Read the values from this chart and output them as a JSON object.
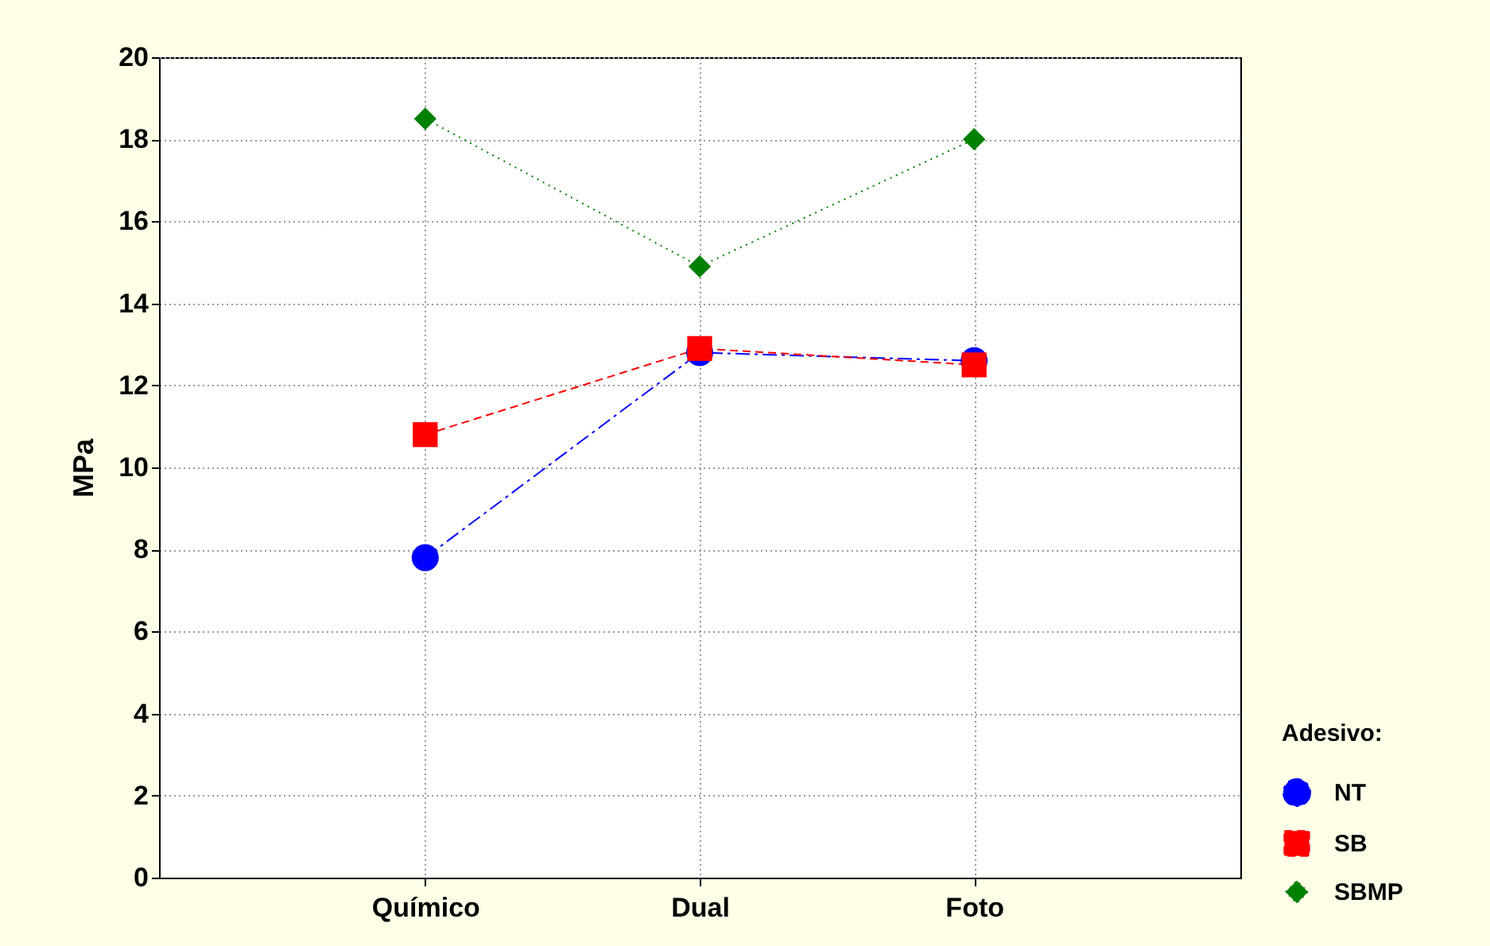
{
  "chart_data": {
    "type": "line",
    "ylabel": "MPa",
    "legend_title": "Adesivo:",
    "categories": [
      "Químico",
      "Dual",
      "Foto"
    ],
    "series": [
      {
        "name": "NT",
        "color": "#0000ff",
        "values": [
          7.8,
          12.8,
          12.6
        ],
        "marker": "circle",
        "line_style": "dashdot"
      },
      {
        "name": "SB",
        "color": "#ff0000",
        "values": [
          10.8,
          12.9,
          12.5
        ],
        "marker": "square",
        "line_style": "dashed"
      },
      {
        "name": "SBMP",
        "color": "#008000",
        "values": [
          18.5,
          14.9,
          18.0
        ],
        "marker": "diamond",
        "line_style": "dotted"
      }
    ],
    "ylim": [
      0,
      20
    ],
    "yticks": [
      0,
      2,
      4,
      6,
      8,
      10,
      12,
      14,
      16,
      18,
      20
    ],
    "grid": true,
    "legend": "bottom right"
  }
}
